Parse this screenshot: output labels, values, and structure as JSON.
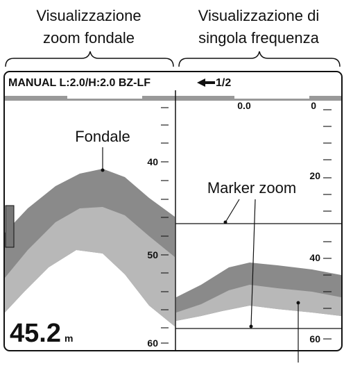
{
  "captions": {
    "left": [
      "Visualizzazione",
      "zoom fondale"
    ],
    "right": [
      "Visualizzazione di",
      "singola frequenza"
    ]
  },
  "header": {
    "mode": "MANUAL L:2.0/H:2.0 BZ-LF",
    "page": "1/2"
  },
  "left_scale": [
    "40",
    "50",
    "60"
  ],
  "right_scale": {
    "offset": "0.0",
    "ticks": [
      "0",
      "20",
      "40",
      "60"
    ]
  },
  "annotations": {
    "seabed": "Fondale",
    "marker": "Marker zoom"
  },
  "depth": {
    "value": "45.2",
    "unit": "m"
  }
}
